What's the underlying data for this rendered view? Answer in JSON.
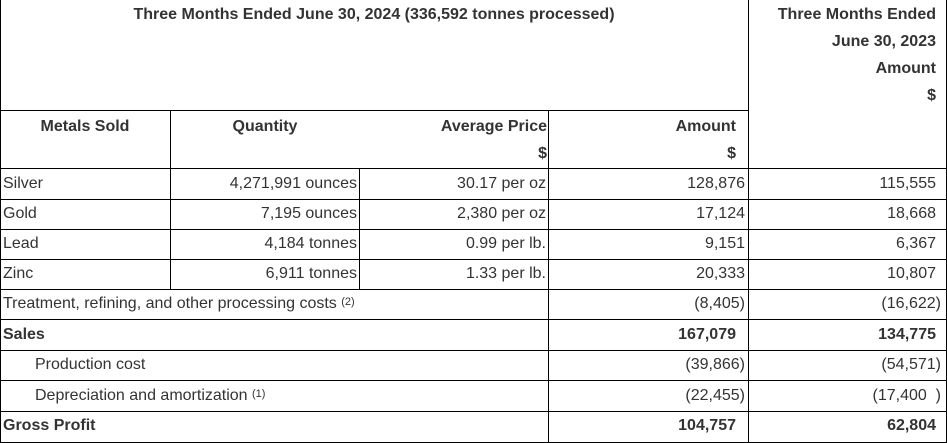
{
  "header": {
    "current_period": "Three Months Ended June 30, 2024 (336,592 tonnes processed)",
    "prior_period_line1": "Three Months Ended",
    "prior_period_line2": "June 30, 2023",
    "prior_period_line3": "Amount",
    "prior_period_line4": "$"
  },
  "columns": {
    "metals_sold": "Metals Sold",
    "quantity": "Quantity",
    "average_price": "Average Price",
    "average_price_unit": "$",
    "amount": "Amount",
    "amount_unit": "$"
  },
  "metals": [
    {
      "metal": "Silver",
      "quantity": "4,271,991 ounces",
      "price": "30.17 per oz",
      "amount": "128,876",
      "prior": "115,555"
    },
    {
      "metal": "Gold",
      "quantity": "7,195 ounces",
      "price": "2,380 per oz",
      "amount": "17,124",
      "prior": "18,668"
    },
    {
      "metal": "Lead",
      "quantity": "4,184 tonnes",
      "price": "0.99 per lb.",
      "amount": "9,151",
      "prior": "6,367"
    },
    {
      "metal": "Zinc",
      "quantity": "6,911 tonnes",
      "price": "1.33 per lb.",
      "amount": "20,333",
      "prior": "10,807"
    }
  ],
  "treatment": {
    "label": "Treatment, refining, and other processing costs",
    "note": "(2)",
    "amount": "(8,405)",
    "prior": "(16,622)"
  },
  "sales": {
    "label": "Sales",
    "amount": "167,079",
    "prior": "134,775"
  },
  "production": {
    "label": "Production cost",
    "amount": "(39,866)",
    "prior": "(54,571)"
  },
  "depreciation": {
    "label": "Depreciation and amortization",
    "note": "(1)",
    "amount": "(22,455)",
    "prior": "(17,400  )"
  },
  "gross_profit": {
    "label": "Gross Profit",
    "amount": "104,757",
    "prior": "62,804"
  }
}
